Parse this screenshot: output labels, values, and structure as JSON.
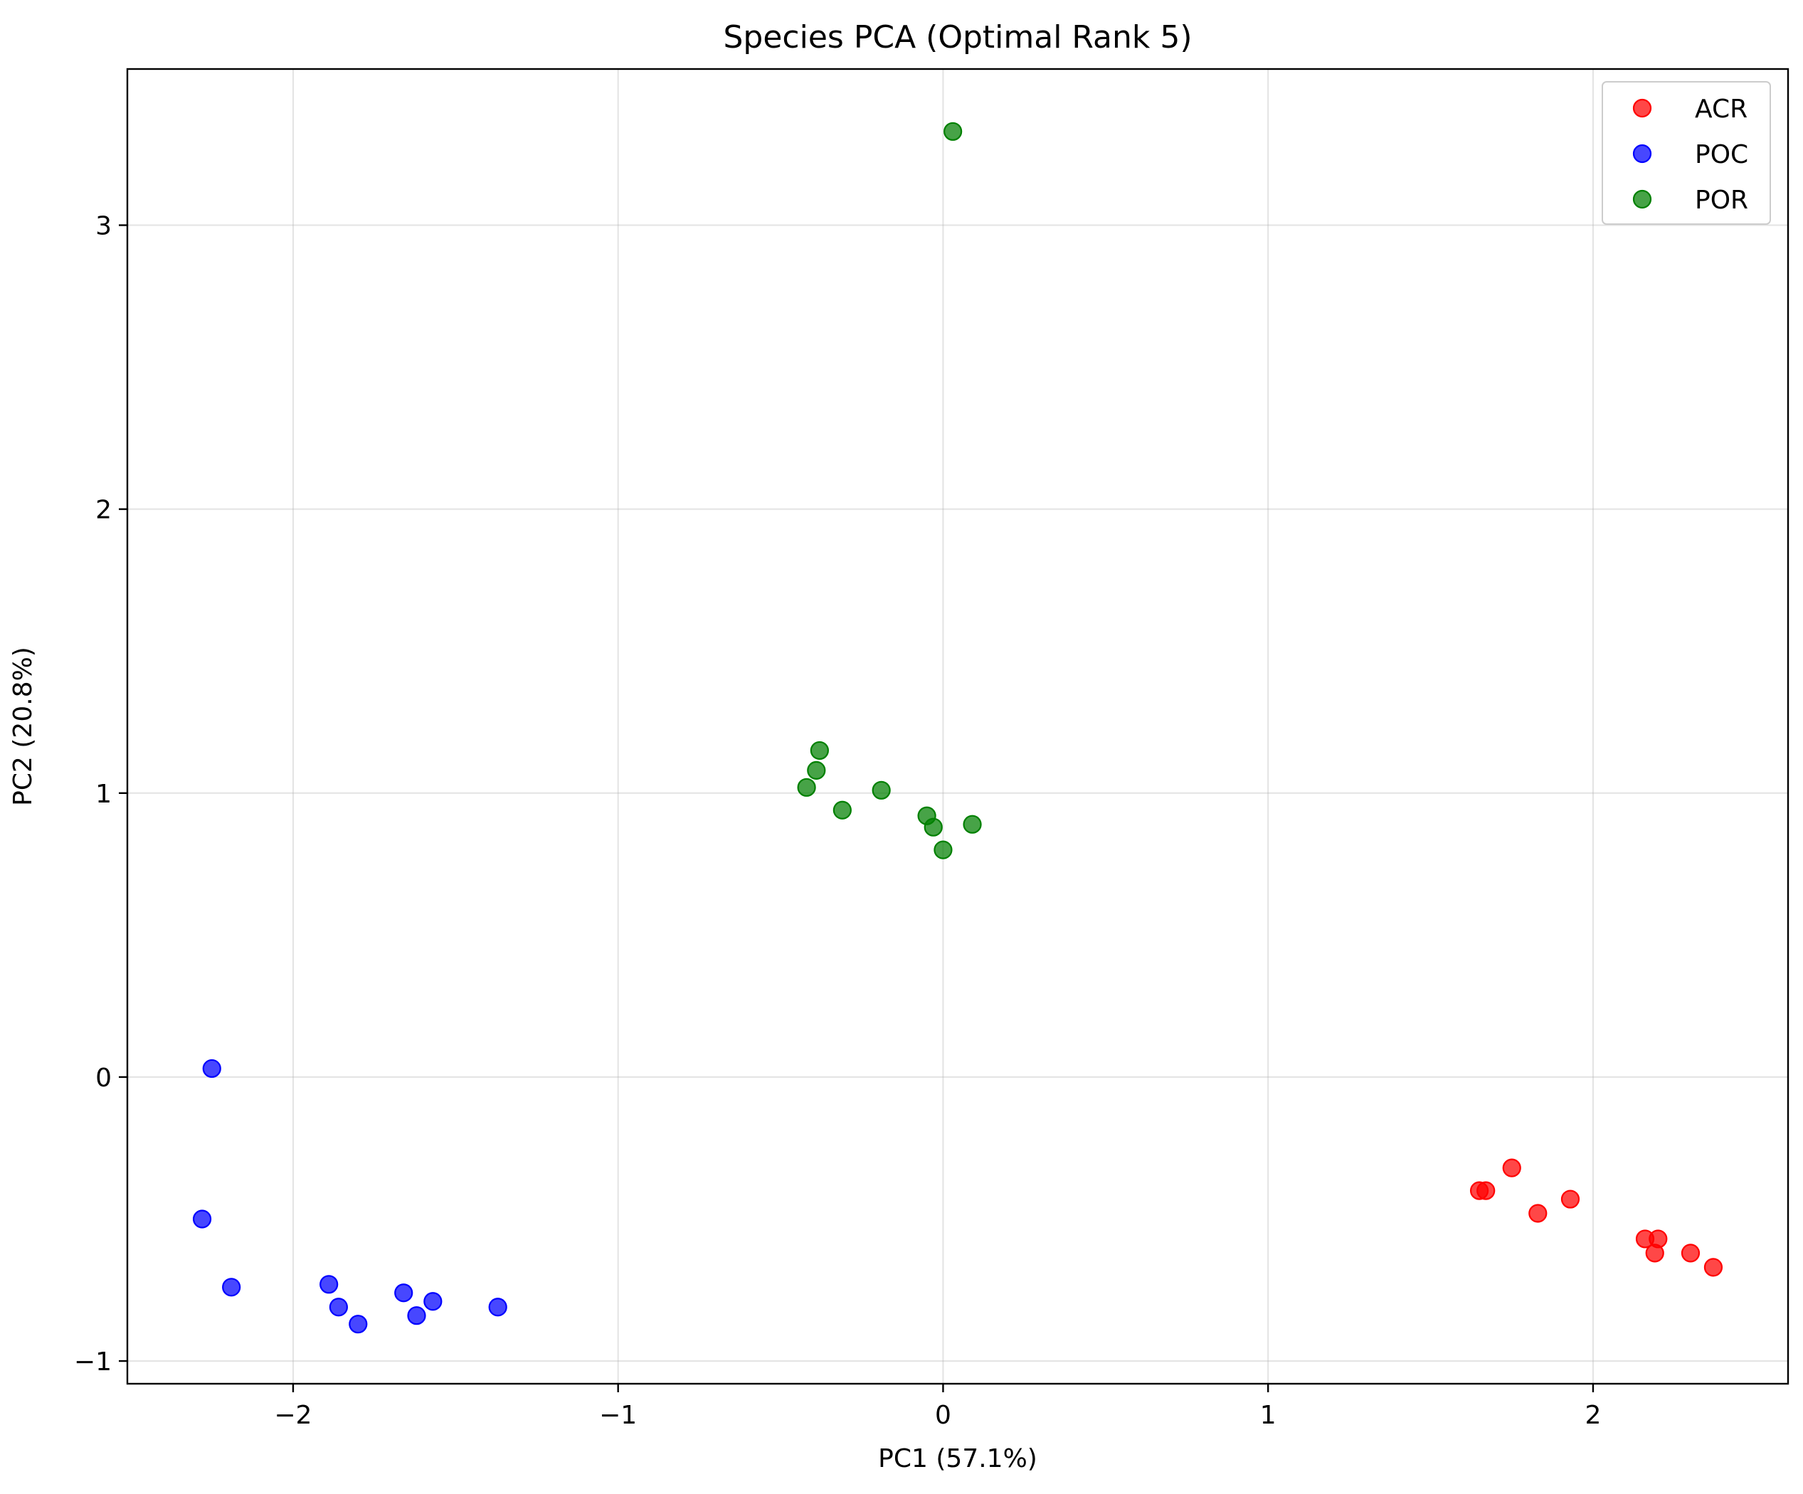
{
  "chart_data": {
    "type": "scatter",
    "title": "Species PCA (Optimal Rank 5)",
    "xlabel": "PC1 (57.1%)",
    "ylabel": "PC2 (20.8%)",
    "xlim": [
      -2.51,
      2.6
    ],
    "ylim": [
      -1.08,
      3.55
    ],
    "x_ticks": [
      -2,
      -1,
      0,
      1,
      2
    ],
    "y_ticks": [
      -1,
      0,
      1,
      2,
      3
    ],
    "x_tick_labels": [
      "−2",
      "−1",
      "0",
      "1",
      "2"
    ],
    "y_tick_labels": [
      "−1",
      "0",
      "1",
      "2",
      "3"
    ],
    "grid": true,
    "legend_position": "top-right",
    "series": [
      {
        "name": "ACR",
        "color": "#ff0000",
        "points": [
          {
            "x": 1.65,
            "y": -0.4
          },
          {
            "x": 1.67,
            "y": -0.4
          },
          {
            "x": 1.75,
            "y": -0.32
          },
          {
            "x": 1.83,
            "y": -0.48
          },
          {
            "x": 1.93,
            "y": -0.43
          },
          {
            "x": 2.16,
            "y": -0.57
          },
          {
            "x": 2.2,
            "y": -0.57
          },
          {
            "x": 2.19,
            "y": -0.62
          },
          {
            "x": 2.3,
            "y": -0.62
          },
          {
            "x": 2.37,
            "y": -0.67
          }
        ]
      },
      {
        "name": "POC",
        "color": "#0000ff",
        "points": [
          {
            "x": -2.25,
            "y": 0.03
          },
          {
            "x": -2.28,
            "y": -0.5
          },
          {
            "x": -2.19,
            "y": -0.74
          },
          {
            "x": -1.89,
            "y": -0.73
          },
          {
            "x": -1.86,
            "y": -0.81
          },
          {
            "x": -1.8,
            "y": -0.87
          },
          {
            "x": -1.66,
            "y": -0.76
          },
          {
            "x": -1.62,
            "y": -0.84
          },
          {
            "x": -1.57,
            "y": -0.79
          },
          {
            "x": -1.37,
            "y": -0.81
          }
        ]
      },
      {
        "name": "POR",
        "color": "#008000",
        "points": [
          {
            "x": 0.03,
            "y": 3.33
          },
          {
            "x": -0.38,
            "y": 1.15
          },
          {
            "x": -0.39,
            "y": 1.08
          },
          {
            "x": -0.42,
            "y": 1.02
          },
          {
            "x": -0.31,
            "y": 0.94
          },
          {
            "x": -0.19,
            "y": 1.01
          },
          {
            "x": -0.05,
            "y": 0.92
          },
          {
            "x": -0.03,
            "y": 0.88
          },
          {
            "x": 0.09,
            "y": 0.89
          },
          {
            "x": 0.0,
            "y": 0.8
          }
        ]
      }
    ]
  }
}
